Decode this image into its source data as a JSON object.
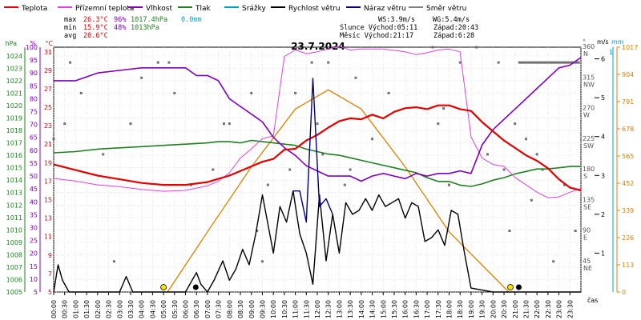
{
  "chart_data": {
    "type": "line",
    "title": "23.7.2024",
    "legend": [
      {
        "name": "Teplota",
        "color": "#e00000"
      },
      {
        "name": "Přízemní teplota",
        "color": "#e040e0"
      },
      {
        "name": "Vlhkost",
        "color": "#8000c0"
      },
      {
        "name": "Tlak",
        "color": "#208020"
      },
      {
        "name": "Srážky",
        "color": "#00a0c0"
      },
      {
        "name": "Rychlost větru",
        "color": "#000000"
      },
      {
        "name": "Náraz větru",
        "color": "#000080"
      },
      {
        "name": "Směr větru",
        "color": "#808080"
      }
    ],
    "stats": {
      "max": {
        "label": "max",
        "temp": "26.3°C",
        "hum": "96%",
        "press": "1017.4hPa",
        "rain": "0.0mm"
      },
      "min": {
        "label": "min",
        "temp": "15.9°C",
        "hum": "48%",
        "press": "1013hPa"
      },
      "avg": {
        "label": "avg",
        "temp": "20.6°C"
      }
    },
    "info": {
      "ws": "WS:3.9m/s",
      "wg": "WG:5.4m/s",
      "sun": "Slunce Východ:05:11",
      "sunset": "Západ:20:43",
      "moon": "Měsíc  Východ:21:17",
      "moonset": "Západ:6:28"
    },
    "axes": {
      "hpa": {
        "unit": "hPa",
        "ticks": [
          "1024",
          "1023",
          "1022",
          "1021",
          "1020",
          "1019",
          "1018",
          "1017",
          "1016",
          "1015",
          "1014",
          "1013",
          "1012",
          "1011",
          "1010",
          "1009",
          "1008",
          "1007",
          "1006",
          "1005"
        ],
        "ylim": [
          1005,
          1024.7
        ]
      },
      "pct": {
        "unit": "%",
        "ticks": [
          "100",
          "95",
          "90",
          "85",
          "80",
          "75",
          "70",
          "65",
          "60",
          "55",
          "50",
          "45",
          "40",
          "35",
          "30",
          "25",
          "20",
          "15",
          "10",
          "5"
        ],
        "ylim": [
          5,
          100
        ]
      },
      "degc": {
        "unit": "°C",
        "ticks": [
          "31",
          "29",
          "27",
          "25",
          "23",
          "21",
          "19",
          "17",
          "15",
          "13",
          "11",
          "9",
          "7",
          "5"
        ],
        "ylim": [
          5,
          31.5
        ]
      },
      "dir": {
        "unit": "°",
        "ticks": [
          "360 N",
          "315 NW",
          "270 W",
          "225 SW",
          "180 S",
          "135 SE",
          "90 E",
          "45 NE"
        ],
        "ylim": [
          0,
          360
        ]
      },
      "ms": {
        "unit": "m/s",
        "ticks": [
          "6",
          "5",
          "4",
          "3",
          "2",
          "1"
        ],
        "ylim": [
          0,
          6.3
        ]
      },
      "mm": {
        "unit": "mm",
        "ticks": [
          "1"
        ],
        "ylim": [
          0,
          1
        ]
      },
      "rad": {
        "ticks": [
          "1017",
          "904",
          "791",
          "678",
          "565",
          "452",
          "339",
          "226",
          "113",
          "0"
        ],
        "ylim": [
          0,
          1017
        ]
      },
      "x": {
        "label": "čas",
        "ticks": [
          "00:00",
          "00:30",
          "01:00",
          "01:30",
          "02:00",
          "02:30",
          "03:00",
          "03:30",
          "04:00",
          "04:30",
          "05:00",
          "05:30",
          "06:00",
          "06:30",
          "07:00",
          "07:30",
          "08:00",
          "08:30",
          "09:00",
          "09:30",
          "10:00",
          "10:30",
          "11:00",
          "11:30",
          "12:00",
          "12:30",
          "13:00",
          "13:30",
          "14:00",
          "14:30",
          "15:00",
          "15:30",
          "16:00",
          "16:30",
          "17:00",
          "17:30",
          "18:00",
          "18:30",
          "19:00",
          "19:30",
          "20:00",
          "20:30",
          "21:00",
          "21:30",
          "22:00",
          "22:30",
          "23:00",
          "23:30"
        ]
      }
    },
    "series": [
      {
        "name": "Teplota",
        "unit": "°C",
        "x": [
          0,
          1,
          2,
          3,
          4,
          5,
          6,
          7,
          8,
          9,
          9.5,
          10,
          10.5,
          11,
          11.5,
          12,
          12.5,
          13,
          13.5,
          14,
          14.5,
          15,
          15.5,
          16,
          16.5,
          17,
          17.5,
          18,
          18.5,
          19,
          19.5,
          20,
          20.5,
          21,
          21.5,
          22,
          22.5,
          23,
          23.5,
          24
        ],
        "y": [
          18.8,
          18.2,
          17.6,
          17.2,
          16.8,
          16.6,
          16.6,
          16.9,
          17.6,
          18.6,
          19.1,
          19.4,
          20.4,
          20.5,
          21.4,
          22.0,
          22.8,
          23.5,
          23.8,
          23.7,
          24.2,
          23.8,
          24.5,
          24.9,
          25.0,
          24.8,
          25.2,
          25.2,
          24.8,
          24.6,
          23.4,
          22.4,
          21.4,
          20.6,
          19.8,
          19.2,
          18.4,
          17.2,
          16.3,
          16.0
        ]
      },
      {
        "name": "Přízemní teplota",
        "unit": "°C",
        "x": [
          0,
          1,
          2,
          3,
          4,
          5,
          6,
          7,
          7.5,
          8,
          8.5,
          9,
          9.5,
          10,
          10.5,
          11,
          11.5,
          12,
          12.5,
          13,
          13.5,
          14,
          15,
          16,
          16.5,
          17,
          17.5,
          18,
          18.5,
          19,
          19.5,
          20,
          20.5,
          21,
          21.5,
          22,
          22.5,
          23,
          23.5,
          24
        ],
        "y": [
          17.3,
          17.0,
          16.6,
          16.4,
          16.1,
          15.9,
          16.0,
          16.5,
          17.0,
          17.9,
          19.5,
          20.5,
          21.6,
          21.9,
          30.5,
          31.2,
          30.8,
          31.0,
          31.3,
          31.6,
          31.2,
          31.3,
          31.3,
          31.0,
          30.7,
          30.9,
          31.2,
          31.3,
          31.0,
          21.8,
          19.5,
          18.8,
          18.6,
          17.4,
          16.6,
          15.8,
          15.2,
          15.3,
          15.8,
          16.2
        ]
      },
      {
        "name": "Vlhkost",
        "unit": "%",
        "x": [
          0,
          1,
          2,
          3,
          4,
          5,
          6,
          6.5,
          7,
          7.5,
          8,
          8.5,
          9,
          9.5,
          10,
          10.5,
          11,
          11.5,
          12,
          12.5,
          13,
          13.5,
          14,
          14.5,
          15,
          15.5,
          16,
          16.5,
          17,
          17.5,
          18,
          18.5,
          19,
          19.5,
          20,
          20.5,
          21,
          21.5,
          22,
          22.5,
          23,
          23.5,
          24
        ],
        "y": [
          87,
          87,
          90,
          91,
          92,
          92,
          92,
          89,
          89,
          87,
          80,
          77,
          74,
          71,
          65,
          61,
          58,
          54,
          52,
          50,
          50,
          50,
          48,
          50,
          51,
          50,
          49,
          51,
          50,
          51,
          51,
          52,
          51,
          62,
          68,
          72,
          76,
          80,
          84,
          88,
          92,
          93,
          96
        ]
      },
      {
        "name": "Tlak",
        "unit": "hPa",
        "x": [
          0,
          1,
          2,
          3,
          4,
          5,
          6,
          7,
          7.5,
          8,
          8.5,
          9,
          9.5,
          10,
          10.5,
          11,
          11.5,
          12,
          12.5,
          13,
          13.5,
          14,
          14.5,
          15,
          15.5,
          16,
          16.5,
          17,
          17.5,
          18,
          18.5,
          19,
          19.5,
          20,
          20.5,
          21,
          21.5,
          22,
          22.5,
          23,
          23.5,
          24
        ],
        "y": [
          1016.2,
          1016.3,
          1016.5,
          1016.6,
          1016.7,
          1016.8,
          1016.9,
          1017.0,
          1017.1,
          1017.1,
          1017.0,
          1017.2,
          1017.1,
          1017.0,
          1016.9,
          1016.8,
          1016.5,
          1016.3,
          1016.1,
          1016.0,
          1015.8,
          1015.6,
          1015.4,
          1015.2,
          1015.0,
          1014.8,
          1014.6,
          1014.2,
          1013.9,
          1013.9,
          1013.6,
          1013.5,
          1013.7,
          1014.0,
          1014.2,
          1014.5,
          1014.7,
          1014.9,
          1014.9,
          1015.0,
          1015.1,
          1015.1
        ]
      },
      {
        "name": "Rychlost větru",
        "unit": "m/s",
        "x": [
          0,
          0.2,
          0.4,
          0.7,
          1,
          2,
          3,
          3.3,
          3.6,
          4,
          5,
          6,
          6.5,
          6.7,
          7,
          7.3,
          7.7,
          8,
          8.3,
          8.6,
          8.9,
          9.2,
          9.5,
          9.8,
          10,
          10.3,
          10.6,
          10.9,
          11.2,
          11.5,
          11.8,
          12.1,
          12.4,
          12.7,
          13,
          13.3,
          13.6,
          13.9,
          14.2,
          14.5,
          14.8,
          15.1,
          15.4,
          15.7,
          16,
          16.3,
          16.6,
          16.9,
          17.2,
          17.5,
          17.8,
          18.1,
          18.4,
          18.7,
          19,
          20,
          21,
          22,
          23,
          24
        ],
        "y": [
          0,
          0.7,
          0.3,
          0,
          0,
          0,
          0,
          0.4,
          0,
          0,
          0,
          0,
          0.5,
          0.2,
          0,
          0.3,
          0.8,
          0.3,
          0.6,
          1.1,
          0.7,
          1.5,
          2.5,
          1.6,
          1.0,
          2.2,
          1.8,
          2.6,
          1.5,
          1.0,
          0.2,
          2.5,
          0.8,
          2.0,
          1.0,
          2.3,
          2.0,
          2.1,
          2.4,
          2.1,
          2.5,
          2.2,
          2.3,
          2.4,
          1.9,
          2.3,
          2.2,
          1.3,
          1.4,
          1.6,
          1.2,
          2.1,
          2.0,
          1.0,
          0.1,
          0,
          0,
          0,
          0,
          0
        ]
      },
      {
        "name": "Náraz větru",
        "unit": "m/s",
        "x": [
          10.9,
          11.2,
          11.5,
          11.8,
          12.1,
          12.4,
          12.7
        ],
        "y": [
          2.6,
          2.6,
          1.8,
          5.5,
          2.2,
          2.4,
          2.0
        ]
      },
      {
        "name": "Směr větru",
        "unit": "°"
      }
    ],
    "radiation_curve": {
      "unit": "W/m²",
      "x": [
        5.183,
        7,
        9,
        11,
        12.5,
        14,
        16,
        18,
        20.717
      ],
      "y": [
        0,
        250,
        520,
        760,
        840,
        760,
        520,
        250,
        0
      ]
    },
    "markers": {
      "sunrise_hour": 5.183,
      "sunset_hour": 20.717,
      "moonrise_hour": 21.283,
      "moonset_hour": 6.467
    }
  }
}
